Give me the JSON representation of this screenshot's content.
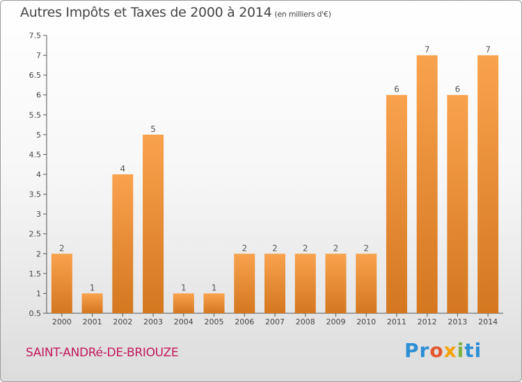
{
  "title": "Autres Impôts et Taxes de 2000 à 2014",
  "unit": "(en milliers d'€)",
  "commune": "SAINT-ANDRé-DE-BRIOUZE",
  "logo": {
    "parts": [
      "Pr",
      "o",
      "x",
      "i",
      "ti"
    ]
  },
  "colors": {
    "bar_light": "#f9a24e",
    "bar_dark": "#d4771f",
    "accent_text": "#c2185b"
  },
  "chart_data": {
    "type": "bar",
    "categories": [
      "2000",
      "2001",
      "2002",
      "2003",
      "2004",
      "2005",
      "2006",
      "2007",
      "2008",
      "2009",
      "2010",
      "2011",
      "2012",
      "2013",
      "2014"
    ],
    "values": [
      2,
      1,
      4,
      5,
      1,
      1,
      2,
      2,
      2,
      2,
      2,
      6,
      7,
      6,
      7
    ],
    "ylim": [
      0.5,
      7.5
    ],
    "yticks": [
      "0.5",
      "1",
      "1.5",
      "2",
      "2.5",
      "3",
      "3.5",
      "4",
      "4.5",
      "5",
      "5.5",
      "6",
      "6.5",
      "7",
      "7.5"
    ],
    "grid": false
  }
}
